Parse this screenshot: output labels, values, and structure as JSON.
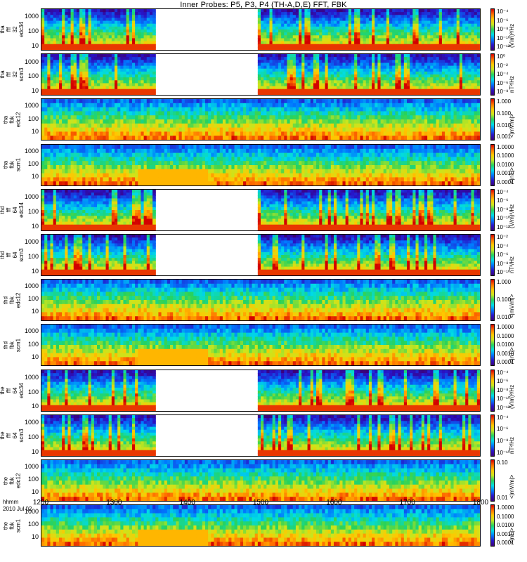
{
  "title": "Inner Probes: P5, P3, P4 (TH-A,D,E) FFT, FBK",
  "x_axis": {
    "label_line1": "hhmm",
    "label_line2": "2010 Jul 02",
    "ticks": [
      "1200",
      "1300",
      "1400",
      "1500",
      "1600",
      "1700",
      "1800"
    ]
  },
  "colors": {
    "hot": "#d40000",
    "cold": "#40109a",
    "bg_gap": "#ffffff"
  },
  "chart_data": [
    {
      "type": "heatmap",
      "probe": "tha",
      "label": [
        "tha",
        "fff",
        "32",
        "edc34"
      ],
      "yticks": [
        "1000",
        "100",
        "10"
      ],
      "cb_ticks": [
        "10⁻⁴",
        "10⁻⁶",
        "10⁻⁸",
        "10⁻¹⁰",
        "10⁻¹²"
      ],
      "unit": "(V/m)²/Hz",
      "gap": [
        1355,
        1495
      ],
      "ylog": true,
      "ylim": [
        5,
        4000
      ]
    },
    {
      "type": "heatmap",
      "probe": "tha",
      "label": [
        "tha",
        "fff",
        "32",
        "scm3"
      ],
      "yticks": [
        "1000",
        "100",
        "10"
      ],
      "cb_ticks": [
        "10⁰",
        "10⁻²",
        "10⁻⁴",
        "10⁻⁶",
        "10⁻⁸"
      ],
      "unit": "nT²/Hz",
      "gap": [
        1355,
        1495
      ],
      "ylog": true,
      "ylim": [
        5,
        4000
      ]
    },
    {
      "type": "heatmap",
      "probe": "tha",
      "label": [
        "tha",
        "fbk",
        "edc12"
      ],
      "yticks": [
        "1000",
        "100",
        "10"
      ],
      "cb_ticks": [
        "1.000",
        "0.100",
        "0.010",
        "0.001"
      ],
      "unit": "<|mV/m|>",
      "gap": null,
      "ylog": true,
      "ylim": [
        2,
        4000
      ]
    },
    {
      "type": "heatmap",
      "probe": "tha",
      "label": [
        "tha",
        "fbk",
        "scm1"
      ],
      "yticks": [
        "1000",
        "100",
        "10"
      ],
      "cb_ticks": [
        "1.0000",
        "0.1000",
        "0.0100",
        "0.0010",
        "0.0001"
      ],
      "unit": "<|nT|>",
      "gap": null,
      "ylog": true,
      "ylim": [
        2,
        4000
      ]
    },
    {
      "type": "heatmap",
      "probe": "thd",
      "label": [
        "thd",
        "fff",
        "64",
        "edc34"
      ],
      "yticks": [
        "1000",
        "100",
        "10"
      ],
      "cb_ticks": [
        "10⁻⁴",
        "10⁻⁶",
        "10⁻⁸",
        "10⁻¹⁰",
        "10⁻¹²"
      ],
      "unit": "(V/m)²/Hz",
      "gap": [
        1355,
        1495
      ],
      "ylog": true,
      "ylim": [
        5,
        4000
      ]
    },
    {
      "type": "heatmap",
      "probe": "thd",
      "label": [
        "thd",
        "fff",
        "64",
        "scm3"
      ],
      "yticks": [
        "1000",
        "100",
        "10"
      ],
      "cb_ticks": [
        "10⁻²",
        "10⁻⁴",
        "10⁻⁶",
        "10⁻⁸",
        "10⁻¹⁰"
      ],
      "unit": "nT²/Hz",
      "gap": [
        1355,
        1495
      ],
      "ylog": true,
      "ylim": [
        5,
        4000
      ]
    },
    {
      "type": "heatmap",
      "probe": "thd",
      "label": [
        "thd",
        "fbk",
        "edc12"
      ],
      "yticks": [
        "1000",
        "100",
        "10"
      ],
      "cb_ticks": [
        "1.000",
        "0.100",
        "0.010"
      ],
      "unit": "<|mV/m|>",
      "gap": null,
      "ylog": true,
      "ylim": [
        2,
        4000
      ]
    },
    {
      "type": "heatmap",
      "probe": "thd",
      "label": [
        "thd",
        "fbk",
        "scm1"
      ],
      "yticks": [
        "1000",
        "100",
        "10"
      ],
      "cb_ticks": [
        "1.0000",
        "0.1000",
        "0.0100",
        "0.0010",
        "0.0001"
      ],
      "unit": "<|nT|>",
      "gap": null,
      "ylog": true,
      "ylim": [
        2,
        4000
      ]
    },
    {
      "type": "heatmap",
      "probe": "the",
      "label": [
        "the",
        "fff",
        "64",
        "edc34"
      ],
      "yticks": [
        "1000",
        "100",
        "10"
      ],
      "cb_ticks": [
        "10⁻⁴",
        "10⁻⁶",
        "10⁻⁸",
        "10⁻¹⁰",
        "10⁻¹²"
      ],
      "unit": "(V/m)²/Hz",
      "gap": [
        1355,
        1495
      ],
      "ylog": true,
      "ylim": [
        5,
        4000
      ]
    },
    {
      "type": "heatmap",
      "probe": "the",
      "label": [
        "the",
        "fff",
        "64",
        "scm3"
      ],
      "yticks": [
        "1000",
        "100",
        "10"
      ],
      "cb_ticks": [
        "10⁻⁴",
        "10⁻⁶",
        "10⁻⁸",
        "10⁻¹⁰"
      ],
      "unit": "nT²/Hz",
      "gap": [
        1355,
        1495
      ],
      "ylog": true,
      "ylim": [
        5,
        4000
      ]
    },
    {
      "type": "heatmap",
      "probe": "the",
      "label": [
        "the",
        "fbk",
        "edc12"
      ],
      "yticks": [
        "1000",
        "100",
        "10"
      ],
      "cb_ticks": [
        "0.10",
        "0.01"
      ],
      "unit": "<|mV/m|>",
      "gap": null,
      "ylog": true,
      "ylim": [
        2,
        4000
      ]
    },
    {
      "type": "heatmap",
      "probe": "the",
      "label": [
        "the",
        "fbk",
        "scm1"
      ],
      "yticks": [
        "1000",
        "100",
        "10"
      ],
      "cb_ticks": [
        "1.0000",
        "0.1000",
        "0.0100",
        "0.0010",
        "0.0001"
      ],
      "unit": "<|nT|>",
      "gap": null,
      "ylog": true,
      "ylim": [
        2,
        4000
      ]
    }
  ]
}
